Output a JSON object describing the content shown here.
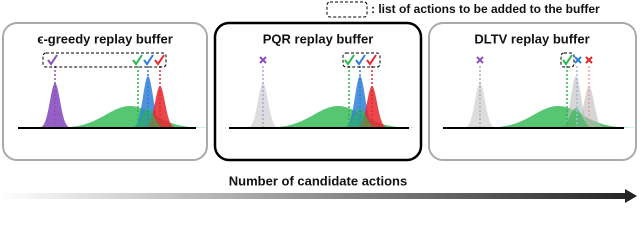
{
  "legend": {
    "text": ": list of actions to be added to the buffer"
  },
  "panels": [
    {
      "title": "ϵ-greedy replay buffer"
    },
    {
      "title": "PQR replay buffer"
    },
    {
      "title": "DLTV replay buffer"
    }
  ],
  "axis": {
    "label": "Number of candidate actions"
  }
}
